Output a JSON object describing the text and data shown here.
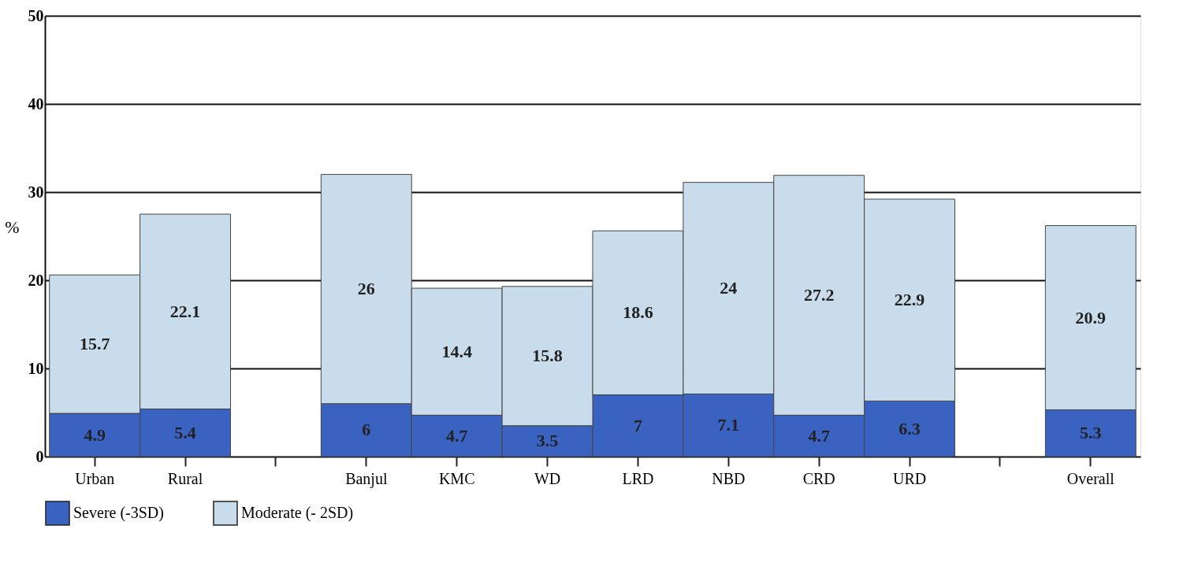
{
  "chart_data": {
    "type": "bar",
    "stacked": true,
    "ylabel": "%",
    "categories": [
      "Urban",
      "Rural",
      null,
      "Banjul",
      "KMC",
      "WD",
      "LRD",
      "NBD",
      "CRD",
      "URD",
      null,
      "Overall"
    ],
    "series": [
      {
        "name": "Severe (-3SD)",
        "color": "#3a62c0",
        "values": [
          4.9,
          5.4,
          null,
          6,
          4.7,
          3.5,
          7,
          7.1,
          4.7,
          6.3,
          null,
          5.3
        ]
      },
      {
        "name": "Moderate (- 2SD)",
        "color": "#c9dcec",
        "values": [
          15.7,
          22.1,
          null,
          26,
          14.4,
          15.8,
          18.6,
          24,
          27.2,
          22.9,
          null,
          20.9
        ]
      }
    ],
    "ylim": [
      0,
      50
    ],
    "yticks": [
      0,
      10,
      20,
      30,
      40,
      50
    ],
    "grid": "y",
    "legend": "bottom",
    "data_labels": true
  }
}
